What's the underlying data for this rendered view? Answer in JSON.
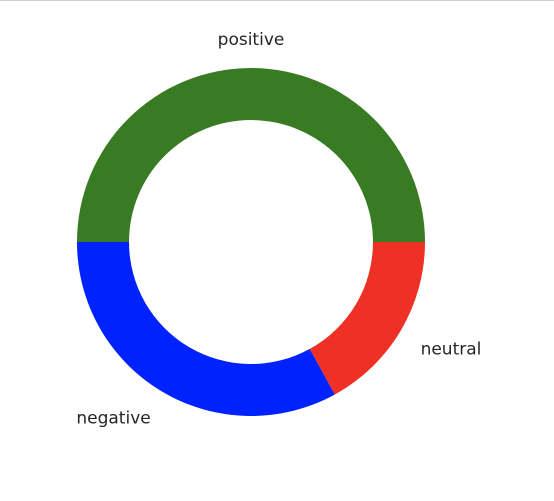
{
  "chart_data": {
    "type": "pie",
    "variant": "donut",
    "categories": [
      "positive",
      "negative",
      "neutral"
    ],
    "values": [
      50,
      33,
      17
    ],
    "colors": [
      "#397b23",
      "#0022ff",
      "#ee3124"
    ],
    "title": "",
    "legend": "none"
  }
}
